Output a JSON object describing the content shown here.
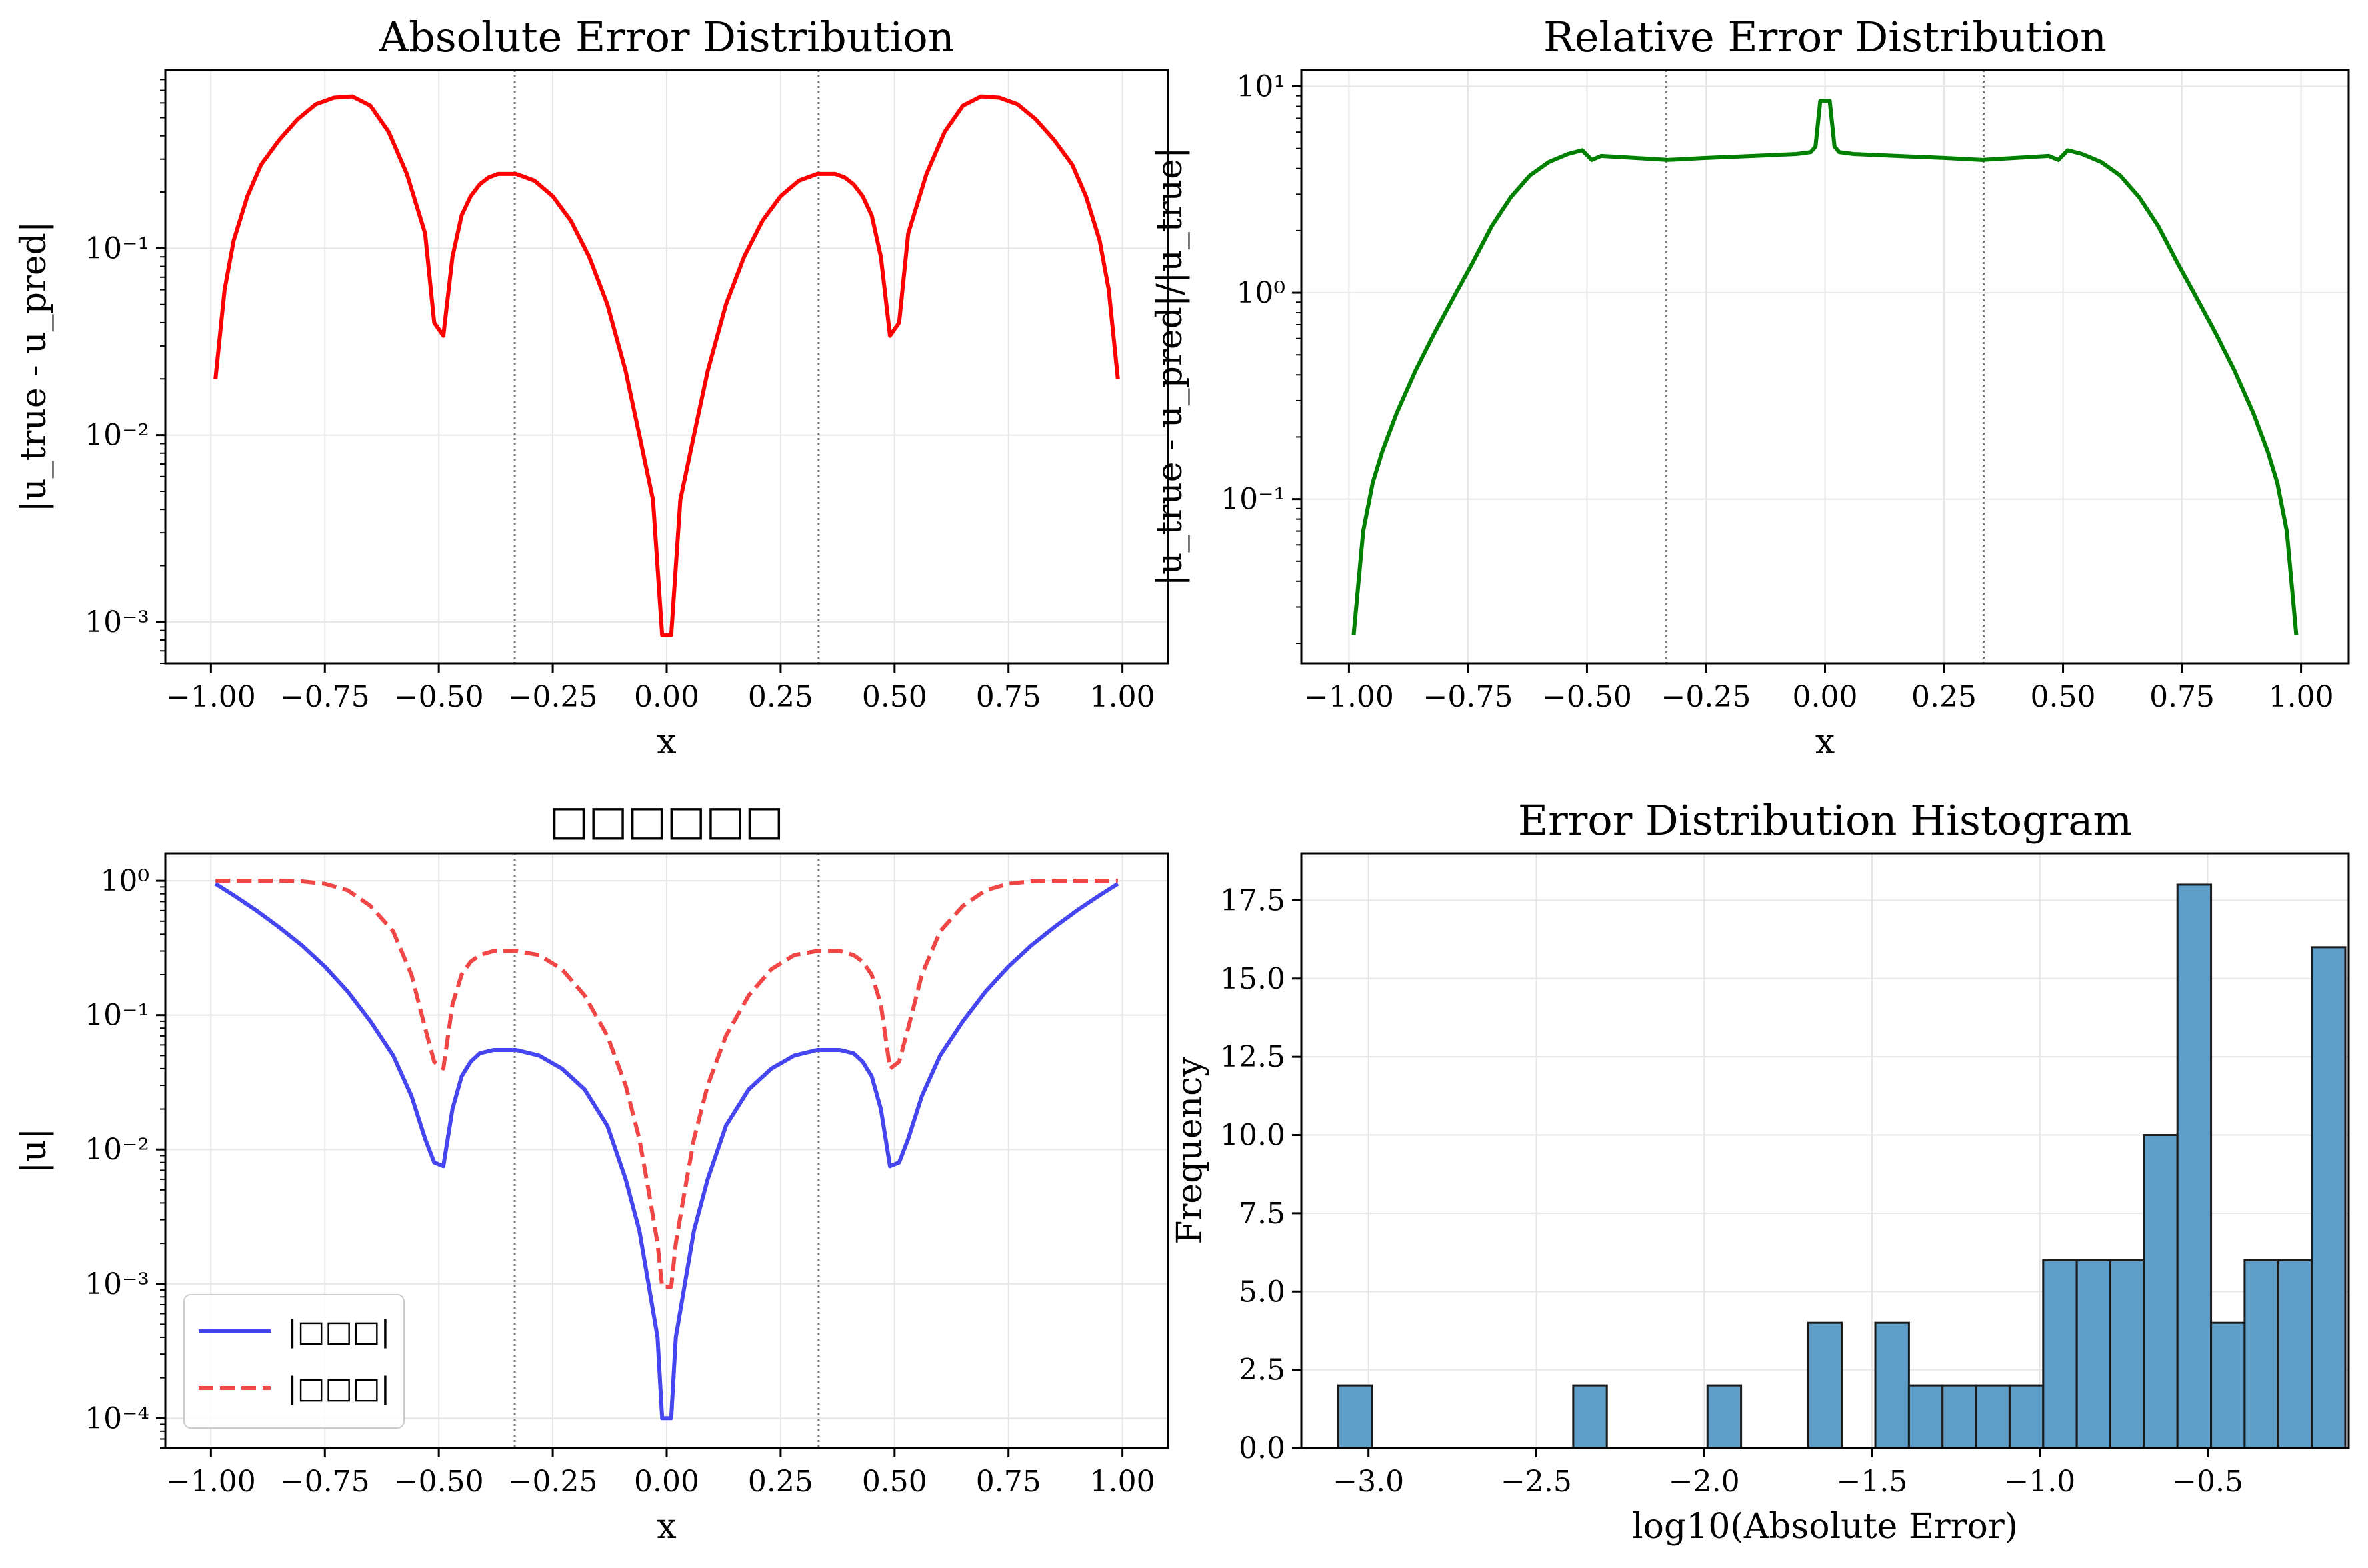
{
  "chart_data": [
    {
      "panel": "top-left",
      "type": "line",
      "title": "Absolute Error Distribution",
      "xlabel": "x",
      "ylabel": "|u_true - u_pred|",
      "yscale": "log",
      "xlim": [
        -1.1,
        1.1
      ],
      "ylim": [
        0.0006,
        0.9
      ],
      "xticks": [
        "−1.00",
        "−0.75",
        "−0.50",
        "−0.25",
        "0.00",
        "0.25",
        "0.50",
        "0.75",
        "1.00"
      ],
      "xtick_values": [
        -1,
        -0.75,
        -0.5,
        -0.25,
        0,
        0.25,
        0.5,
        0.75,
        1
      ],
      "yticks": [
        "10⁻³",
        "10⁻²",
        "10⁻¹"
      ],
      "ytick_values": [
        0.001,
        0.01,
        0.1
      ],
      "vlines": [
        -0.3333,
        0.3333
      ],
      "grid": true,
      "series": [
        {
          "color": "#ff0000",
          "style": "solid",
          "x": [
            -0.99,
            -0.97,
            -0.95,
            -0.92,
            -0.89,
            -0.85,
            -0.81,
            -0.77,
            -0.73,
            -0.69,
            -0.65,
            -0.61,
            -0.57,
            -0.53,
            -0.51,
            -0.49,
            -0.47,
            -0.45,
            -0.43,
            -0.41,
            -0.39,
            -0.37,
            -0.33,
            -0.29,
            -0.25,
            -0.21,
            -0.17,
            -0.13,
            -0.09,
            -0.06,
            -0.03,
            -0.01,
            0.01,
            0.03,
            0.06,
            0.09,
            0.13,
            0.17,
            0.21,
            0.25,
            0.29,
            0.33,
            0.37,
            0.39,
            0.41,
            0.43,
            0.45,
            0.47,
            0.49,
            0.51,
            0.53,
            0.57,
            0.61,
            0.65,
            0.69,
            0.73,
            0.77,
            0.81,
            0.85,
            0.89,
            0.92,
            0.95,
            0.97,
            0.99
          ],
          "y": [
            0.02,
            0.06,
            0.11,
            0.19,
            0.28,
            0.38,
            0.49,
            0.59,
            0.64,
            0.65,
            0.58,
            0.42,
            0.25,
            0.12,
            0.04,
            0.034,
            0.09,
            0.15,
            0.19,
            0.22,
            0.24,
            0.25,
            0.25,
            0.23,
            0.19,
            0.14,
            0.09,
            0.05,
            0.022,
            0.01,
            0.0045,
            0.00085,
            0.00085,
            0.0045,
            0.01,
            0.022,
            0.05,
            0.09,
            0.14,
            0.19,
            0.23,
            0.25,
            0.25,
            0.24,
            0.22,
            0.19,
            0.15,
            0.09,
            0.034,
            0.04,
            0.12,
            0.25,
            0.42,
            0.58,
            0.65,
            0.64,
            0.59,
            0.49,
            0.38,
            0.28,
            0.19,
            0.11,
            0.06,
            0.02
          ]
        }
      ]
    },
    {
      "panel": "top-right",
      "type": "line",
      "title": "Relative Error Distribution",
      "xlabel": "x",
      "ylabel": "|u_true - u_pred|/|u_true|",
      "yscale": "log",
      "xlim": [
        -1.1,
        1.1
      ],
      "ylim": [
        0.016,
        12
      ],
      "xticks": [
        "−1.00",
        "−0.75",
        "−0.50",
        "−0.25",
        "0.00",
        "0.25",
        "0.50",
        "0.75",
        "1.00"
      ],
      "xtick_values": [
        -1,
        -0.75,
        -0.5,
        -0.25,
        0,
        0.25,
        0.5,
        0.75,
        1
      ],
      "yticks": [
        "10⁻¹",
        "10⁰",
        "10¹"
      ],
      "ytick_values": [
        0.1,
        1,
        10
      ],
      "vlines": [
        -0.3333,
        0.3333
      ],
      "grid": true,
      "series": [
        {
          "color": "#008000",
          "style": "solid",
          "x": [
            -0.99,
            -0.97,
            -0.95,
            -0.93,
            -0.9,
            -0.86,
            -0.82,
            -0.78,
            -0.74,
            -0.7,
            -0.66,
            -0.62,
            -0.58,
            -0.54,
            -0.51,
            -0.49,
            -0.47,
            -0.4,
            -0.33,
            -0.25,
            -0.15,
            -0.06,
            -0.03,
            -0.02,
            -0.01,
            0.01,
            0.02,
            0.03,
            0.06,
            0.15,
            0.25,
            0.33,
            0.4,
            0.47,
            0.49,
            0.51,
            0.54,
            0.58,
            0.62,
            0.66,
            0.7,
            0.74,
            0.78,
            0.82,
            0.86,
            0.9,
            0.93,
            0.95,
            0.97,
            0.99
          ],
          "y": [
            0.022,
            0.07,
            0.12,
            0.17,
            0.26,
            0.42,
            0.64,
            0.95,
            1.4,
            2.1,
            2.9,
            3.7,
            4.3,
            4.7,
            4.9,
            4.4,
            4.6,
            4.5,
            4.4,
            4.5,
            4.6,
            4.7,
            4.8,
            5.1,
            8.5,
            8.5,
            5.1,
            4.8,
            4.7,
            4.6,
            4.5,
            4.4,
            4.5,
            4.6,
            4.4,
            4.9,
            4.7,
            4.3,
            3.7,
            2.9,
            2.1,
            1.4,
            0.95,
            0.64,
            0.42,
            0.26,
            0.17,
            0.12,
            0.07,
            0.022
          ]
        }
      ]
    },
    {
      "panel": "bottom-left",
      "type": "line",
      "title": "□□□□□□",
      "xlabel": "x",
      "ylabel": "|u|",
      "yscale": "log",
      "xlim": [
        -1.1,
        1.1
      ],
      "ylim": [
        6e-05,
        1.6
      ],
      "xticks": [
        "−1.00",
        "−0.75",
        "−0.50",
        "−0.25",
        "0.00",
        "0.25",
        "0.50",
        "0.75",
        "1.00"
      ],
      "xtick_values": [
        -1,
        -0.75,
        -0.5,
        -0.25,
        0,
        0.25,
        0.5,
        0.75,
        1
      ],
      "yticks": [
        "10⁻⁴",
        "10⁻³",
        "10⁻²",
        "10⁻¹",
        "10⁰"
      ],
      "ytick_values": [
        0.0001,
        0.001,
        0.01,
        0.1,
        1
      ],
      "vlines": [
        -0.3333,
        0.3333
      ],
      "grid": true,
      "legend": "lower-left",
      "series": [
        {
          "name": "|□□□|",
          "color": "#4646f0",
          "style": "solid",
          "x": [
            -0.99,
            -0.95,
            -0.9,
            -0.85,
            -0.8,
            -0.75,
            -0.7,
            -0.65,
            -0.6,
            -0.56,
            -0.53,
            -0.51,
            -0.49,
            -0.47,
            -0.45,
            -0.43,
            -0.41,
            -0.38,
            -0.33,
            -0.28,
            -0.23,
            -0.18,
            -0.13,
            -0.09,
            -0.06,
            -0.04,
            -0.02,
            -0.01,
            0.01,
            0.02,
            0.04,
            0.06,
            0.09,
            0.13,
            0.18,
            0.23,
            0.28,
            0.33,
            0.38,
            0.41,
            0.43,
            0.45,
            0.47,
            0.49,
            0.51,
            0.53,
            0.56,
            0.6,
            0.65,
            0.7,
            0.75,
            0.8,
            0.85,
            0.9,
            0.95,
            0.99
          ],
          "y": [
            0.95,
            0.78,
            0.6,
            0.45,
            0.33,
            0.23,
            0.15,
            0.09,
            0.05,
            0.025,
            0.012,
            0.008,
            0.0075,
            0.02,
            0.035,
            0.045,
            0.052,
            0.055,
            0.055,
            0.05,
            0.04,
            0.028,
            0.015,
            0.006,
            0.0025,
            0.001,
            0.0004,
            0.0001,
            0.0001,
            0.0004,
            0.001,
            0.0025,
            0.006,
            0.015,
            0.028,
            0.04,
            0.05,
            0.055,
            0.055,
            0.052,
            0.045,
            0.035,
            0.02,
            0.0075,
            0.008,
            0.012,
            0.025,
            0.05,
            0.09,
            0.15,
            0.23,
            0.33,
            0.45,
            0.6,
            0.78,
            0.95
          ]
        },
        {
          "name": "|□□□|",
          "color": "#f04646",
          "style": "dashed",
          "x": [
            -0.99,
            -0.95,
            -0.9,
            -0.85,
            -0.8,
            -0.75,
            -0.7,
            -0.65,
            -0.6,
            -0.56,
            -0.53,
            -0.51,
            -0.49,
            -0.47,
            -0.45,
            -0.43,
            -0.41,
            -0.38,
            -0.33,
            -0.28,
            -0.23,
            -0.18,
            -0.13,
            -0.09,
            -0.06,
            -0.04,
            -0.02,
            -0.01,
            0.01,
            0.02,
            0.04,
            0.06,
            0.09,
            0.13,
            0.18,
            0.23,
            0.28,
            0.33,
            0.38,
            0.41,
            0.43,
            0.45,
            0.47,
            0.49,
            0.51,
            0.53,
            0.56,
            0.6,
            0.65,
            0.7,
            0.75,
            0.8,
            0.85,
            0.9,
            0.95,
            0.99
          ],
          "y": [
            1,
            1,
            1,
            1,
            0.99,
            0.95,
            0.85,
            0.65,
            0.42,
            0.2,
            0.08,
            0.045,
            0.04,
            0.12,
            0.2,
            0.25,
            0.28,
            0.3,
            0.3,
            0.28,
            0.22,
            0.14,
            0.07,
            0.03,
            0.012,
            0.005,
            0.002,
            0.00095,
            0.00095,
            0.002,
            0.005,
            0.012,
            0.03,
            0.07,
            0.14,
            0.22,
            0.28,
            0.3,
            0.3,
            0.28,
            0.25,
            0.2,
            0.12,
            0.04,
            0.045,
            0.08,
            0.2,
            0.42,
            0.65,
            0.85,
            0.95,
            0.99,
            1,
            1,
            1,
            1
          ]
        }
      ]
    },
    {
      "panel": "bottom-right",
      "type": "bar",
      "title": "Error Distribution Histogram",
      "xlabel": "log10(Absolute Error)",
      "ylabel": "Frequency",
      "xlim": [
        -3.2,
        -0.08
      ],
      "ylim": [
        0,
        19
      ],
      "xticks": [
        "−3.0",
        "−2.5",
        "−2.0",
        "−1.5",
        "−1.0",
        "−0.5"
      ],
      "xtick_values": [
        -3.0,
        -2.5,
        -2.0,
        -1.5,
        -1.0,
        -0.5
      ],
      "yticks": [
        "0.0",
        "2.5",
        "5.0",
        "7.5",
        "10.0",
        "12.5",
        "15.0",
        "17.5"
      ],
      "ytick_values": [
        0,
        2.5,
        5,
        7.5,
        10,
        12.5,
        15,
        17.5
      ],
      "grid": true,
      "bar_color": "#5f9ec8",
      "bin_start": -3.09,
      "bin_width": 0.1,
      "values": [
        2,
        0,
        0,
        0,
        0,
        0,
        0,
        2,
        0,
        0,
        0,
        2,
        0,
        0,
        4,
        0,
        4,
        2,
        2,
        2,
        2,
        6,
        6,
        6,
        10,
        18,
        4,
        6,
        6,
        16
      ]
    }
  ]
}
